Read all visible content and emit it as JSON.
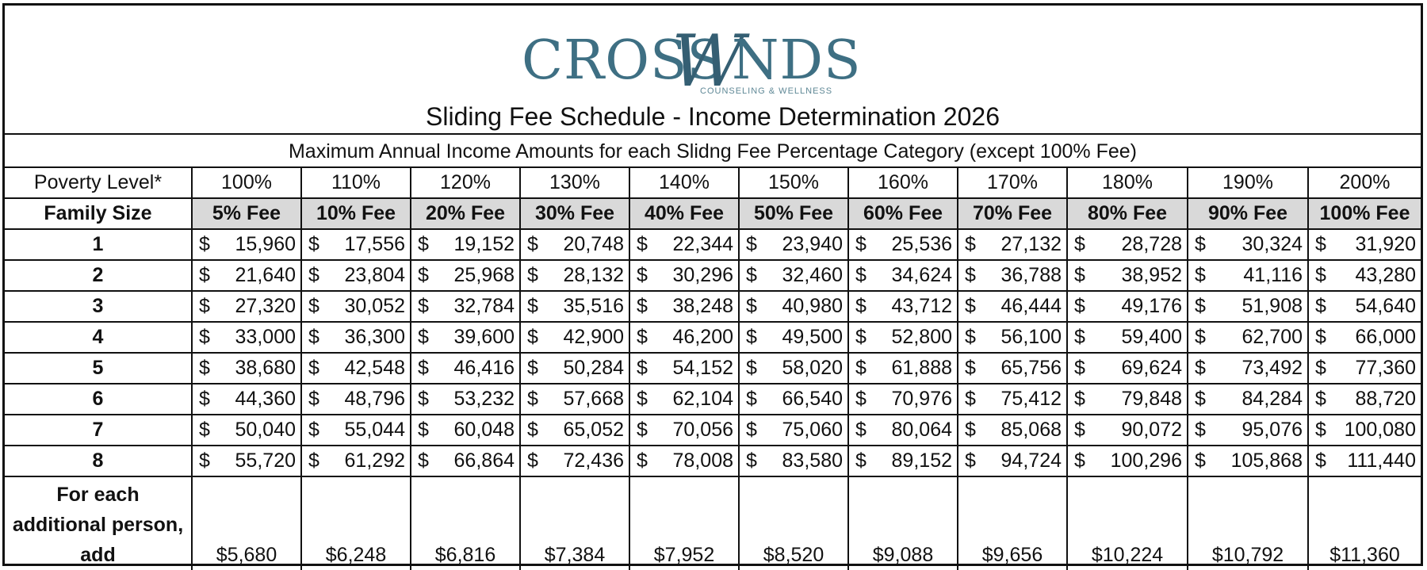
{
  "logo": {
    "left": "CROSS",
    "middle": "W",
    "right": "NDS",
    "tagline": "COUNSELING & WELLNESS",
    "color": "#3e6f83"
  },
  "title": "Sliding Fee Schedule - Income Determination 2026",
  "subtitle": "Maximum Annual Income Amounts for each Slidng Fee Percentage Category (except 100% Fee)",
  "poverty_label": "Poverty Level*",
  "poverty_levels": [
    "100%",
    "110%",
    "120%",
    "130%",
    "140%",
    "150%",
    "160%",
    "170%",
    "180%",
    "190%",
    "200%"
  ],
  "family_size_label": "Family Size",
  "fees": [
    "5% Fee",
    "10% Fee",
    "20% Fee",
    "30% Fee",
    "40% Fee",
    "50% Fee",
    "60% Fee",
    "70% Fee",
    "80% Fee",
    "90% Fee",
    "100% Fee"
  ],
  "currency": "$",
  "rows": [
    {
      "size": "1",
      "values": [
        "15,960",
        "17,556",
        "19,152",
        "20,748",
        "22,344",
        "23,940",
        "25,536",
        "27,132",
        "28,728",
        "30,324",
        "31,920"
      ]
    },
    {
      "size": "2",
      "values": [
        "21,640",
        "23,804",
        "25,968",
        "28,132",
        "30,296",
        "32,460",
        "34,624",
        "36,788",
        "38,952",
        "41,116",
        "43,280"
      ]
    },
    {
      "size": "3",
      "values": [
        "27,320",
        "30,052",
        "32,784",
        "35,516",
        "38,248",
        "40,980",
        "43,712",
        "46,444",
        "49,176",
        "51,908",
        "54,640"
      ]
    },
    {
      "size": "4",
      "values": [
        "33,000",
        "36,300",
        "39,600",
        "42,900",
        "46,200",
        "49,500",
        "52,800",
        "56,100",
        "59,400",
        "62,700",
        "66,000"
      ]
    },
    {
      "size": "5",
      "values": [
        "38,680",
        "42,548",
        "46,416",
        "50,284",
        "54,152",
        "58,020",
        "61,888",
        "65,756",
        "69,624",
        "73,492",
        "77,360"
      ]
    },
    {
      "size": "6",
      "values": [
        "44,360",
        "48,796",
        "53,232",
        "57,668",
        "62,104",
        "66,540",
        "70,976",
        "75,412",
        "79,848",
        "84,284",
        "88,720"
      ]
    },
    {
      "size": "7",
      "values": [
        "50,040",
        "55,044",
        "60,048",
        "65,052",
        "70,056",
        "75,060",
        "80,064",
        "85,068",
        "90,072",
        "95,076",
        "100,080"
      ]
    },
    {
      "size": "8",
      "values": [
        "55,720",
        "61,292",
        "66,864",
        "72,436",
        "78,008",
        "83,580",
        "89,152",
        "94,724",
        "100,296",
        "105,868",
        "111,440"
      ]
    }
  ],
  "additional_label": "For each additional person, add",
  "additional_values": [
    "$5,680",
    "$6,248",
    "$6,816",
    "$7,384",
    "$7,952",
    "$8,520",
    "$9,088",
    "$9,656",
    "$10,224",
    "$10,792",
    "$11,360"
  ]
}
